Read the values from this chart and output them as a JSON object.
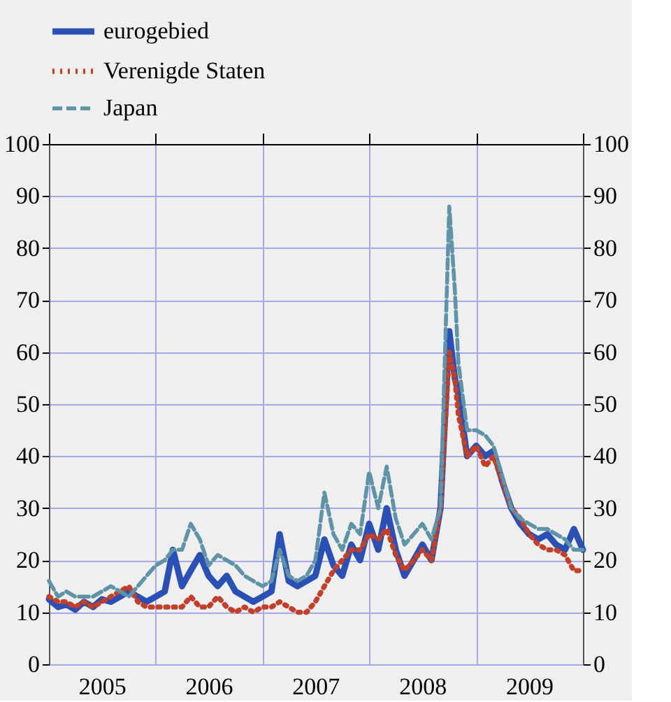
{
  "chart_data": {
    "type": "line",
    "x": [
      "2005-01",
      "2005-02",
      "2005-03",
      "2005-04",
      "2005-05",
      "2005-06",
      "2005-07",
      "2005-08",
      "2005-09",
      "2005-10",
      "2005-11",
      "2005-12",
      "2006-01",
      "2006-02",
      "2006-03",
      "2006-04",
      "2006-05",
      "2006-06",
      "2006-07",
      "2006-08",
      "2006-09",
      "2006-10",
      "2006-11",
      "2006-12",
      "2007-01",
      "2007-02",
      "2007-03",
      "2007-04",
      "2007-05",
      "2007-06",
      "2007-07",
      "2007-08",
      "2007-09",
      "2007-10",
      "2007-11",
      "2007-12",
      "2008-01",
      "2008-02",
      "2008-03",
      "2008-04",
      "2008-05",
      "2008-06",
      "2008-07",
      "2008-08",
      "2008-09",
      "2008-10",
      "2008-10-20",
      "2008-11",
      "2008-12",
      "2009-01",
      "2009-02",
      "2009-03",
      "2009-04",
      "2009-05",
      "2009-06",
      "2009-07",
      "2009-08",
      "2009-09",
      "2009-10",
      "2009-11",
      "2009-12",
      "2010-01"
    ],
    "series": [
      {
        "name": "eurogebied",
        "color": "#2a4fb5",
        "line_style": "solid",
        "values": [
          12.5,
          11,
          11.5,
          10.5,
          12,
          11,
          12.5,
          12,
          13,
          14,
          13,
          12,
          13,
          14,
          22,
          15,
          18,
          21,
          17,
          15,
          17,
          14,
          13,
          12,
          13,
          14,
          25,
          16,
          15,
          16,
          17,
          24,
          19,
          17,
          23,
          20,
          27,
          22,
          30,
          22,
          17,
          20,
          23,
          20,
          30,
          64,
          55,
          52,
          40,
          42,
          40,
          41,
          35,
          30,
          27,
          25,
          24,
          25,
          23,
          22,
          26,
          22
        ]
      },
      {
        "name": "Verenigde Staten",
        "color": "#c0402a",
        "line_style": "dotted",
        "values": [
          13,
          12,
          12,
          11,
          12,
          11,
          12,
          13,
          14,
          15,
          12,
          11,
          11,
          11,
          11,
          11,
          13,
          11,
          11,
          13,
          11,
          10,
          11,
          10,
          11,
          11,
          12,
          11,
          10,
          10,
          12,
          15,
          18,
          20,
          22,
          22,
          25,
          24,
          26,
          21,
          18,
          20,
          22,
          20,
          30,
          60,
          55,
          48,
          40,
          42,
          38,
          40,
          35,
          30,
          28,
          25,
          23,
          22,
          22,
          21,
          18,
          18
        ]
      },
      {
        "name": "Japan",
        "color": "#5f93a8",
        "line_style": "dashed",
        "values": [
          16,
          13,
          14,
          13,
          13,
          13,
          14,
          15,
          14,
          13,
          15,
          17,
          19,
          20,
          22,
          22,
          27,
          24,
          19,
          21,
          20,
          19,
          17,
          16,
          15,
          16,
          22,
          17,
          16,
          17,
          20,
          33,
          25,
          22,
          27,
          25,
          37,
          30,
          38,
          28,
          23,
          25,
          27,
          24,
          30,
          88,
          72,
          58,
          45,
          45,
          44,
          42,
          36,
          30,
          28,
          27,
          26,
          26,
          25,
          24,
          22,
          22
        ]
      }
    ],
    "xlim": [
      "2005-01",
      "2010-01"
    ],
    "xticks": [
      {
        "value": "2005-01",
        "label": null
      },
      {
        "value": "2005-07",
        "label": "2005"
      },
      {
        "value": "2006-01",
        "label": null
      },
      {
        "value": "2006-07",
        "label": "2006"
      },
      {
        "value": "2007-01",
        "label": null
      },
      {
        "value": "2007-07",
        "label": "2007"
      },
      {
        "value": "2008-01",
        "label": null
      },
      {
        "value": "2008-07",
        "label": "2008"
      },
      {
        "value": "2009-01",
        "label": null
      },
      {
        "value": "2009-07",
        "label": "2009"
      },
      {
        "value": "2010-01",
        "label": null
      }
    ],
    "ylim": [
      0,
      100
    ],
    "yticks": [
      0,
      10,
      20,
      30,
      40,
      50,
      60,
      70,
      80,
      90,
      100
    ],
    "y2lim": [
      0,
      100
    ],
    "y2ticks": [
      0,
      10,
      20,
      30,
      40,
      50,
      60,
      70,
      80,
      90,
      100
    ],
    "grid": true,
    "legend": "top left"
  }
}
